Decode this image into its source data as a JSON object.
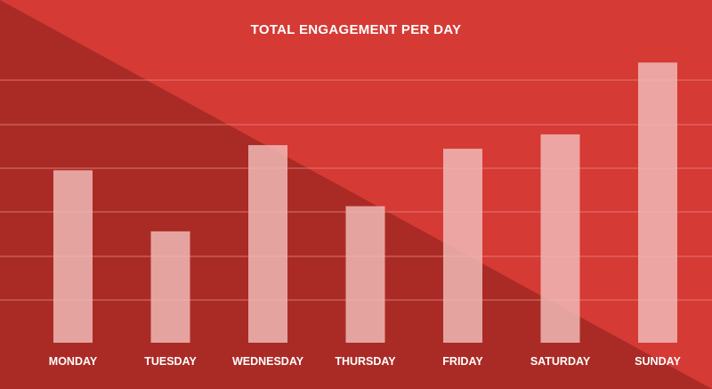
{
  "chart_data": {
    "type": "bar",
    "title": "TOTAL ENGAGEMENT PER DAY",
    "categories": [
      "MONDAY",
      "TUESDAY",
      "WEDNESDAY",
      "THURSDAY",
      "FRIDAY",
      "SATURDAY",
      "SUNDAY"
    ],
    "values": [
      4.8,
      3.1,
      5.5,
      3.8,
      5.4,
      5.8,
      7.8
    ],
    "xlabel": "",
    "ylabel": "",
    "ylim": [
      0,
      8.5
    ],
    "grid": true,
    "legend": "none"
  },
  "colors": {
    "background": "#d53a35",
    "shadow": "#a52a25",
    "bar": "#f0b8b5",
    "gridline": "#e98c88",
    "text": "#ffffff"
  }
}
